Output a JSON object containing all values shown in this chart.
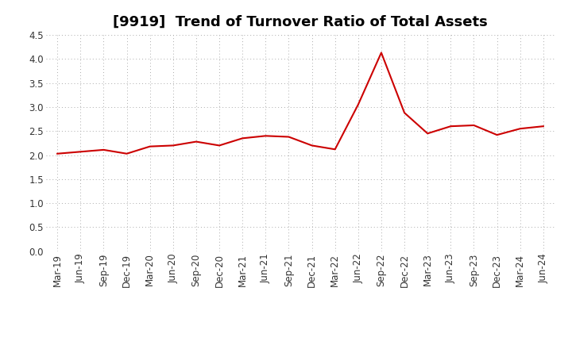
{
  "title": "[9919]  Trend of Turnover Ratio of Total Assets",
  "labels": [
    "Mar-19",
    "Jun-19",
    "Sep-19",
    "Dec-19",
    "Mar-20",
    "Jun-20",
    "Sep-20",
    "Dec-20",
    "Mar-21",
    "Jun-21",
    "Sep-21",
    "Dec-21",
    "Mar-22",
    "Jun-22",
    "Sep-22",
    "Dec-22",
    "Mar-23",
    "Jun-23",
    "Sep-23",
    "Dec-23",
    "Mar-24",
    "Jun-24"
  ],
  "values": [
    2.03,
    2.07,
    2.11,
    2.03,
    2.18,
    2.2,
    2.28,
    2.2,
    2.35,
    2.4,
    2.38,
    2.2,
    2.12,
    3.05,
    4.13,
    2.88,
    2.45,
    2.6,
    2.62,
    2.42,
    2.55,
    2.6
  ],
  "line_color": "#cc0000",
  "background_color": "#ffffff",
  "plot_bg_color": "#ffffff",
  "ylim": [
    0.0,
    4.5
  ],
  "yticks": [
    0.0,
    0.5,
    1.0,
    1.5,
    2.0,
    2.5,
    3.0,
    3.5,
    4.0,
    4.5
  ],
  "title_fontsize": 13,
  "tick_fontsize": 8.5,
  "grid_color": "#aaaaaa",
  "line_width": 1.5
}
